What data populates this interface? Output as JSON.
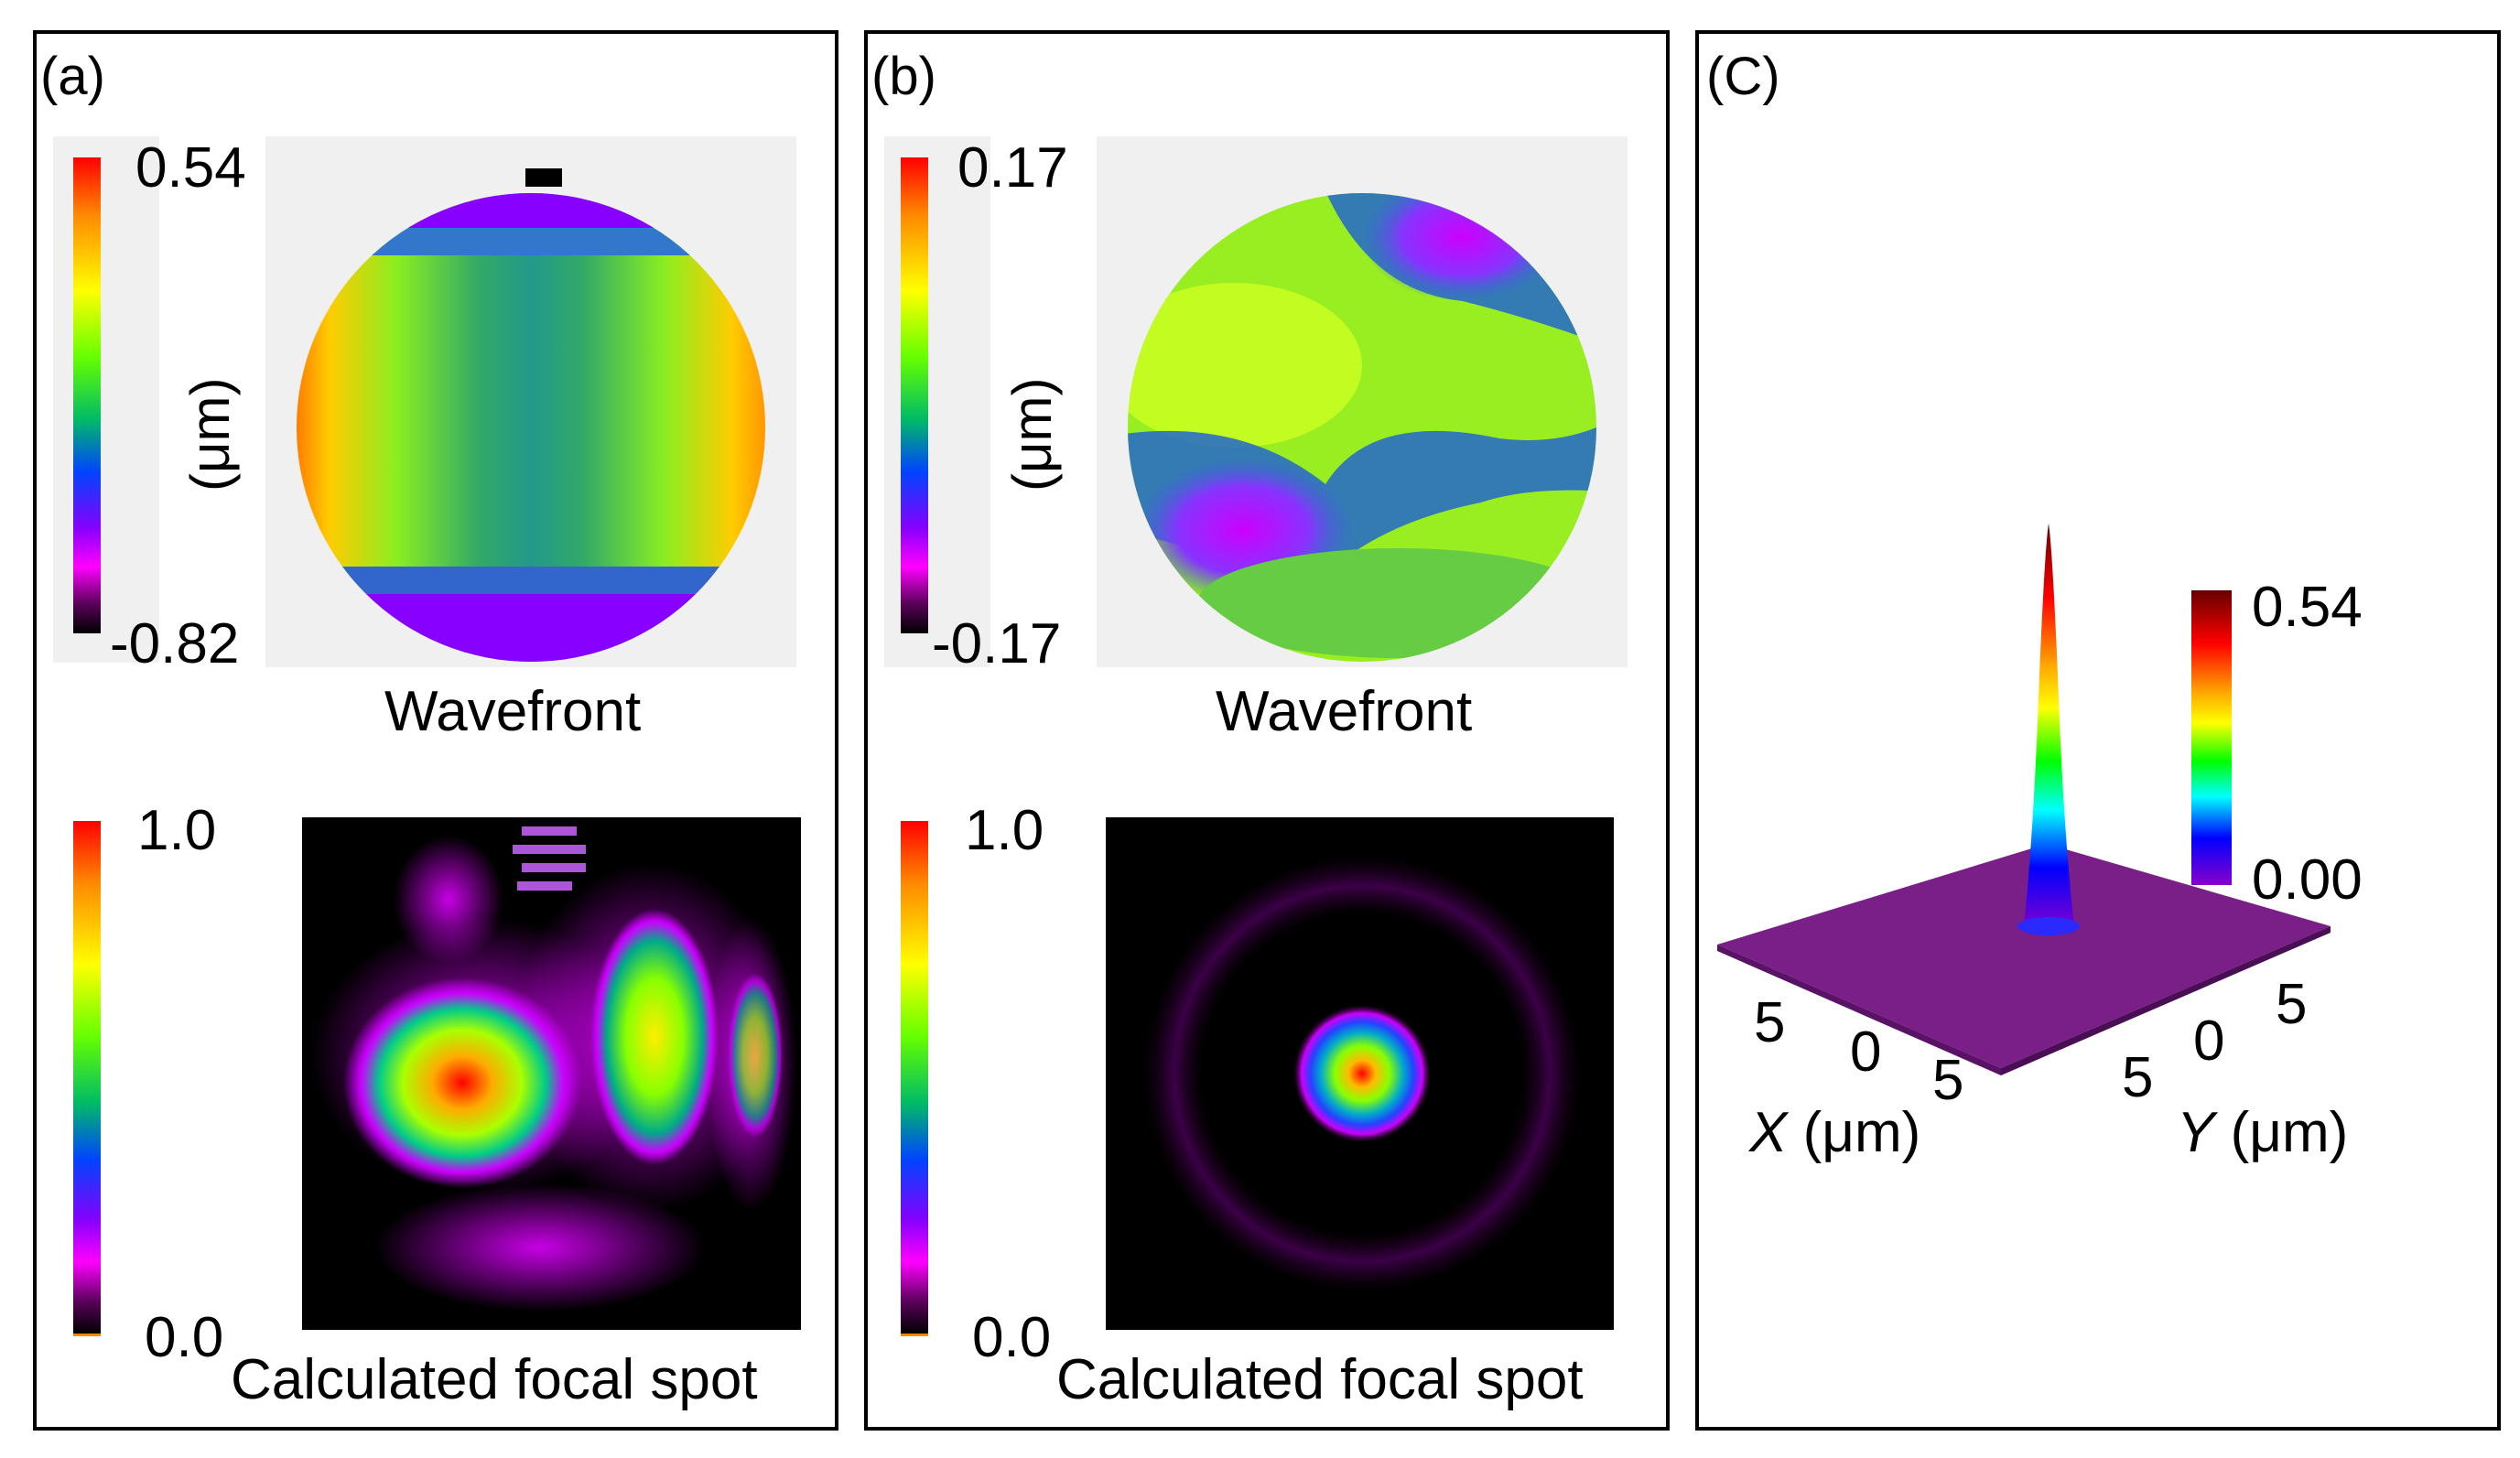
{
  "panels": {
    "a": {
      "label": "(a)",
      "wavefront_cbar": {
        "max": "0.54",
        "min": "-0.82",
        "unit": "(μm)"
      },
      "wavefront_caption": "Wavefront",
      "focal_cbar": {
        "max": "1.0",
        "min": "0.0"
      },
      "focal_caption": "Calculated focal spot"
    },
    "b": {
      "label": "(b)",
      "wavefront_cbar": {
        "max": "0.17",
        "min": "-0.17",
        "unit": "(μm)"
      },
      "wavefront_caption": "Wavefront",
      "focal_cbar": {
        "max": "1.0",
        "min": "0.0"
      },
      "focal_caption": "Calculated focal spot"
    },
    "c": {
      "label": "(C)",
      "cbar": {
        "max": "0.54",
        "min": "0.00"
      },
      "x_ticks": [
        "5",
        "0",
        "5"
      ],
      "y_ticks": [
        "5",
        "0",
        "5"
      ],
      "x_axis": {
        "symbol": "X",
        "unit": " (μm)"
      },
      "y_axis": {
        "symbol": "Y",
        "unit": " (μm)"
      }
    }
  },
  "colors": {
    "border": "#000000",
    "map_background": "#f0f0f0",
    "focal_background": "#000000"
  }
}
